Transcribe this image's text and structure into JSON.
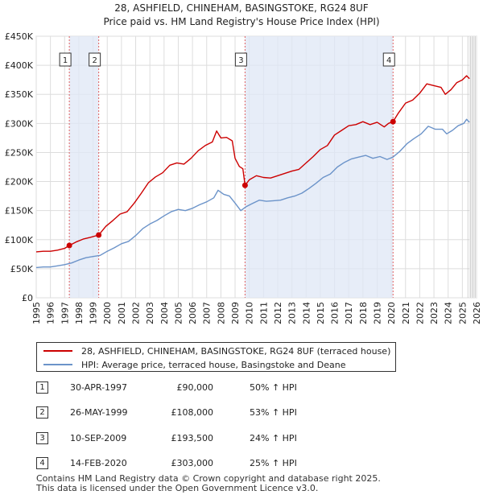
{
  "chart_data": {
    "type": "line",
    "title": "28, ASHFIELD, CHINEHAM, BASINGSTOKE, RG24 8UF",
    "subtitle": "Price paid vs. HM Land Registry's House Price Index (HPI)",
    "xlim": [
      1995,
      2026
    ],
    "ylim": [
      0,
      450000
    ],
    "x_ticks": [
      1995,
      1996,
      1997,
      1998,
      1999,
      2000,
      2001,
      2002,
      2003,
      2004,
      2005,
      2006,
      2007,
      2008,
      2009,
      2010,
      2011,
      2012,
      2013,
      2014,
      2015,
      2016,
      2017,
      2018,
      2019,
      2020,
      2021,
      2022,
      2023,
      2024,
      2025,
      2026
    ],
    "y_ticks": [
      {
        "value": 0,
        "label": "£0"
      },
      {
        "value": 50000,
        "label": "£50K"
      },
      {
        "value": 100000,
        "label": "£100K"
      },
      {
        "value": 150000,
        "label": "£150K"
      },
      {
        "value": 200000,
        "label": "£200K"
      },
      {
        "value": 250000,
        "label": "£250K"
      },
      {
        "value": 300000,
        "label": "£300K"
      },
      {
        "value": 350000,
        "label": "£350K"
      },
      {
        "value": 400000,
        "label": "£400K"
      },
      {
        "value": 450000,
        "label": "£450K"
      }
    ],
    "shaded_ranges": [
      [
        1997.33,
        1999.4
      ],
      [
        2009.7,
        2020.12
      ]
    ],
    "future_from": 2025.5,
    "series": [
      {
        "name": "28, ASHFIELD, CHINEHAM, BASINGSTOKE, RG24 8UF (terraced house)",
        "color": "#cc0000",
        "points": [
          [
            1995.0,
            79000
          ],
          [
            1995.5,
            80000
          ],
          [
            1996.0,
            80000
          ],
          [
            1996.5,
            82000
          ],
          [
            1997.0,
            85000
          ],
          [
            1997.33,
            90000
          ],
          [
            1997.8,
            96000
          ],
          [
            1998.3,
            101000
          ],
          [
            1998.8,
            104000
          ],
          [
            1999.4,
            108000
          ],
          [
            1999.9,
            123000
          ],
          [
            2000.4,
            133000
          ],
          [
            2000.9,
            144000
          ],
          [
            2001.4,
            148000
          ],
          [
            2001.9,
            163000
          ],
          [
            2002.4,
            180000
          ],
          [
            2002.9,
            198000
          ],
          [
            2003.4,
            208000
          ],
          [
            2003.9,
            215000
          ],
          [
            2004.4,
            228000
          ],
          [
            2004.9,
            232000
          ],
          [
            2005.4,
            230000
          ],
          [
            2005.9,
            240000
          ],
          [
            2006.4,
            253000
          ],
          [
            2006.9,
            262000
          ],
          [
            2007.4,
            268000
          ],
          [
            2007.7,
            287000
          ],
          [
            2008.0,
            275000
          ],
          [
            2008.4,
            276000
          ],
          [
            2008.8,
            270000
          ],
          [
            2009.0,
            240000
          ],
          [
            2009.3,
            226000
          ],
          [
            2009.55,
            222000
          ],
          [
            2009.7,
            193500
          ],
          [
            2010.0,
            203000
          ],
          [
            2010.5,
            210000
          ],
          [
            2011.0,
            207000
          ],
          [
            2011.5,
            206000
          ],
          [
            2012.0,
            210000
          ],
          [
            2012.5,
            214000
          ],
          [
            2013.0,
            218000
          ],
          [
            2013.5,
            221000
          ],
          [
            2014.0,
            232000
          ],
          [
            2014.5,
            243000
          ],
          [
            2015.0,
            255000
          ],
          [
            2015.5,
            262000
          ],
          [
            2016.0,
            280000
          ],
          [
            2016.5,
            288000
          ],
          [
            2017.0,
            296000
          ],
          [
            2017.5,
            298000
          ],
          [
            2018.0,
            303000
          ],
          [
            2018.5,
            298000
          ],
          [
            2019.0,
            302000
          ],
          [
            2019.5,
            294000
          ],
          [
            2019.8,
            300000
          ],
          [
            2020.12,
            303000
          ],
          [
            2020.5,
            318000
          ],
          [
            2021.0,
            335000
          ],
          [
            2021.5,
            340000
          ],
          [
            2022.0,
            352000
          ],
          [
            2022.5,
            368000
          ],
          [
            2023.0,
            365000
          ],
          [
            2023.5,
            362000
          ],
          [
            2023.8,
            350000
          ],
          [
            2024.2,
            358000
          ],
          [
            2024.6,
            370000
          ],
          [
            2025.0,
            375000
          ],
          [
            2025.3,
            382000
          ],
          [
            2025.5,
            377000
          ]
        ]
      },
      {
        "name": "HPI: Average price, terraced house, Basingstoke and Deane",
        "color": "#6b93c9",
        "points": [
          [
            1995.0,
            52000
          ],
          [
            1995.5,
            53000
          ],
          [
            1996.0,
            53000
          ],
          [
            1996.5,
            55000
          ],
          [
            1997.0,
            57000
          ],
          [
            1997.5,
            60000
          ],
          [
            1998.0,
            65000
          ],
          [
            1998.5,
            69000
          ],
          [
            1999.0,
            71000
          ],
          [
            1999.5,
            73000
          ],
          [
            2000.0,
            80000
          ],
          [
            2000.5,
            86000
          ],
          [
            2001.0,
            93000
          ],
          [
            2001.5,
            97000
          ],
          [
            2002.0,
            107000
          ],
          [
            2002.5,
            119000
          ],
          [
            2003.0,
            127000
          ],
          [
            2003.5,
            133000
          ],
          [
            2004.0,
            141000
          ],
          [
            2004.5,
            148000
          ],
          [
            2005.0,
            152000
          ],
          [
            2005.5,
            150000
          ],
          [
            2006.0,
            154000
          ],
          [
            2006.5,
            160000
          ],
          [
            2007.0,
            165000
          ],
          [
            2007.5,
            172000
          ],
          [
            2007.8,
            185000
          ],
          [
            2008.2,
            178000
          ],
          [
            2008.6,
            175000
          ],
          [
            2009.0,
            163000
          ],
          [
            2009.4,
            150000
          ],
          [
            2009.8,
            157000
          ],
          [
            2010.2,
            162000
          ],
          [
            2010.7,
            168000
          ],
          [
            2011.2,
            166000
          ],
          [
            2011.7,
            167000
          ],
          [
            2012.2,
            168000
          ],
          [
            2012.7,
            172000
          ],
          [
            2013.2,
            175000
          ],
          [
            2013.7,
            180000
          ],
          [
            2014.2,
            188000
          ],
          [
            2014.7,
            197000
          ],
          [
            2015.2,
            207000
          ],
          [
            2015.7,
            213000
          ],
          [
            2016.2,
            225000
          ],
          [
            2016.7,
            233000
          ],
          [
            2017.2,
            239000
          ],
          [
            2017.7,
            242000
          ],
          [
            2018.2,
            245000
          ],
          [
            2018.7,
            240000
          ],
          [
            2019.2,
            243000
          ],
          [
            2019.7,
            238000
          ],
          [
            2020.12,
            242000
          ],
          [
            2020.6,
            252000
          ],
          [
            2021.1,
            265000
          ],
          [
            2021.6,
            274000
          ],
          [
            2022.1,
            282000
          ],
          [
            2022.6,
            295000
          ],
          [
            2023.1,
            290000
          ],
          [
            2023.6,
            290000
          ],
          [
            2023.9,
            282000
          ],
          [
            2024.3,
            288000
          ],
          [
            2024.7,
            296000
          ],
          [
            2025.1,
            300000
          ],
          [
            2025.3,
            307000
          ],
          [
            2025.5,
            302000
          ]
        ]
      }
    ],
    "markers": [
      {
        "label": "1",
        "x": 1997.33,
        "value": 90000
      },
      {
        "label": "2",
        "x": 1999.4,
        "value": 108000
      },
      {
        "label": "3",
        "x": 2009.7,
        "value": 193500
      },
      {
        "label": "4",
        "x": 2020.12,
        "value": 303000
      }
    ]
  },
  "legend": {
    "property_label": "28, ASHFIELD, CHINEHAM, BASINGSTOKE, RG24 8UF (terraced house)",
    "hpi_label": "HPI: Average price, terraced house, Basingstoke and Deane"
  },
  "sales": [
    {
      "num": "1",
      "date": "30-APR-1997",
      "price": "£90,000",
      "hpi": "50% ↑ HPI"
    },
    {
      "num": "2",
      "date": "26-MAY-1999",
      "price": "£108,000",
      "hpi": "53% ↑ HPI"
    },
    {
      "num": "3",
      "date": "10-SEP-2009",
      "price": "£193,500",
      "hpi": "24% ↑ HPI"
    },
    {
      "num": "4",
      "date": "14-FEB-2020",
      "price": "£303,000",
      "hpi": "25% ↑ HPI"
    }
  ],
  "footer": {
    "line1": "Contains HM Land Registry data © Crown copyright and database right 2025.",
    "line2": "This data is licensed under the Open Government Licence v3.0."
  }
}
